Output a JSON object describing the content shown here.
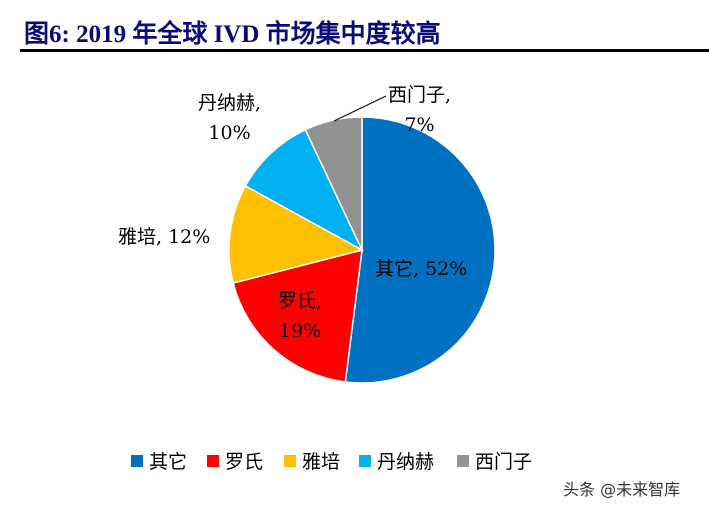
{
  "title": "图6:  2019 年全球 IVD 市场集中度较高",
  "chart_data": {
    "type": "pie",
    "start": "top-clockwise",
    "categories": [
      "其它",
      "罗氏",
      "雅培",
      "丹纳赫",
      "西门子"
    ],
    "values": [
      52,
      19,
      12,
      10,
      7
    ],
    "colors": [
      "#0070C0",
      "#FF0000",
      "#FFC000",
      "#00B0F0",
      "#929292"
    ],
    "data_labels": [
      "其它, 52%",
      "罗氏,\n19%",
      "雅培, 12%",
      "丹纳赫,\n10%",
      "西门子,\n7%"
    ],
    "legend_position": "bottom"
  },
  "watermark": "头条 @未来智库"
}
